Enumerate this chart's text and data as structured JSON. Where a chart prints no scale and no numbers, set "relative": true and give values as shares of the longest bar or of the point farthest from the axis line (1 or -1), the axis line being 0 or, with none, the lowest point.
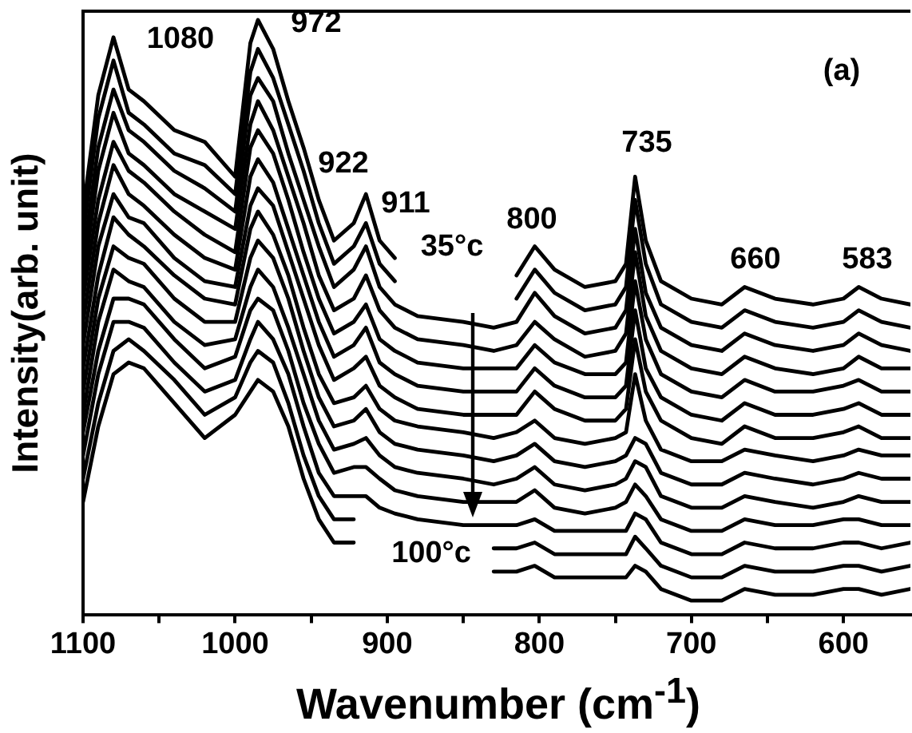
{
  "chart_data": {
    "type": "line",
    "relative": true,
    "legend": false,
    "xlabel": "Wavenumber (cm$^{-1}$)",
    "ylabel": "Intensity(arb. unit)",
    "x": [
      1100,
      1090,
      1080,
      1070,
      1060,
      1040,
      1020,
      1000,
      990,
      985,
      975,
      965,
      955,
      945,
      935,
      922,
      914,
      905,
      895,
      880,
      850,
      830,
      815,
      803,
      790,
      770,
      750,
      743,
      737,
      730,
      720,
      700,
      680,
      665,
      645,
      620,
      600,
      590,
      575,
      556
    ],
    "xlim": [
      1100,
      556
    ],
    "xticks": [
      1100,
      {
        "value": 1050,
        "label": null
      },
      1000,
      {
        "value": 950,
        "label": null
      },
      900,
      {
        "value": 850,
        "label": null
      },
      800,
      {
        "value": 750,
        "label": null
      },
      700,
      {
        "value": 650,
        "label": null
      },
      600
    ],
    "series": [
      {
        "color": "#000000",
        "values": [
          0.67,
          0.87,
          0.97,
          0.88,
          0.86,
          0.81,
          0.79,
          0.73,
          0.96,
          1.0,
          0.95,
          0.86,
          0.78,
          0.69,
          0.62,
          0.65,
          0.7,
          0.62,
          0.59,
          null,
          null,
          null,
          0.56,
          0.61,
          0.57,
          0.54,
          0.55,
          0.58,
          0.73,
          0.62,
          0.55,
          0.52,
          0.51,
          0.54,
          0.52,
          0.51,
          0.52,
          0.54,
          0.52,
          0.51
        ]
      },
      {
        "color": "#000000",
        "values": [
          0.63,
          0.83,
          0.93,
          0.84,
          0.82,
          0.77,
          0.75,
          0.7,
          0.91,
          0.95,
          0.9,
          0.82,
          0.74,
          0.65,
          0.58,
          0.61,
          0.65,
          0.58,
          0.55,
          null,
          null,
          null,
          0.52,
          0.57,
          0.53,
          0.5,
          0.51,
          0.54,
          0.69,
          0.58,
          0.51,
          0.48,
          0.47,
          0.5,
          0.48,
          0.47,
          0.48,
          0.5,
          0.48,
          0.47
        ]
      },
      {
        "color": "#000000",
        "values": [
          0.59,
          0.78,
          0.88,
          0.81,
          0.79,
          0.74,
          0.71,
          0.67,
          0.87,
          0.9,
          0.86,
          0.77,
          0.69,
          0.61,
          0.54,
          0.57,
          0.61,
          0.54,
          0.51,
          0.49,
          0.48,
          0.47,
          0.48,
          0.53,
          0.49,
          0.46,
          0.47,
          0.5,
          0.64,
          0.53,
          0.47,
          0.44,
          0.43,
          0.46,
          0.44,
          0.43,
          0.44,
          0.46,
          0.44,
          0.43
        ]
      },
      {
        "color": "#000000",
        "values": [
          0.55,
          0.74,
          0.84,
          0.77,
          0.75,
          0.7,
          0.67,
          0.64,
          0.82,
          0.86,
          0.81,
          0.73,
          0.65,
          0.56,
          0.5,
          0.52,
          0.56,
          0.5,
          0.47,
          0.45,
          0.44,
          0.43,
          0.44,
          0.48,
          0.45,
          0.42,
          0.43,
          0.46,
          0.6,
          0.49,
          0.43,
          0.4,
          0.39,
          0.42,
          0.4,
          0.39,
          0.4,
          0.42,
          0.4,
          0.4
        ]
      },
      {
        "color": "#000000",
        "values": [
          0.52,
          0.69,
          0.79,
          0.74,
          0.72,
          0.67,
          0.63,
          0.6,
          0.78,
          0.81,
          0.77,
          0.69,
          0.6,
          0.52,
          0.46,
          0.48,
          0.51,
          0.45,
          0.43,
          0.41,
          0.4,
          0.4,
          0.4,
          0.44,
          0.41,
          0.39,
          0.39,
          0.41,
          0.55,
          0.45,
          0.39,
          0.36,
          0.35,
          0.38,
          0.36,
          0.36,
          0.37,
          0.38,
          0.36,
          0.36
        ]
      },
      {
        "color": "#000000",
        "values": [
          0.48,
          0.65,
          0.75,
          0.7,
          0.68,
          0.63,
          0.59,
          0.57,
          0.73,
          0.76,
          0.72,
          0.64,
          0.56,
          0.48,
          0.42,
          0.44,
          0.47,
          0.41,
          0.39,
          0.37,
          0.36,
          0.36,
          0.36,
          0.4,
          0.37,
          0.35,
          0.35,
          0.37,
          0.5,
          0.4,
          0.35,
          0.32,
          0.31,
          0.34,
          0.32,
          0.32,
          0.33,
          0.34,
          0.32,
          0.32
        ]
      },
      {
        "color": "#000000",
        "values": [
          0.44,
          0.61,
          0.7,
          0.66,
          0.65,
          0.59,
          0.55,
          0.54,
          0.68,
          0.71,
          0.68,
          0.6,
          0.52,
          0.44,
          0.38,
          0.4,
          0.42,
          0.37,
          0.35,
          0.33,
          0.32,
          0.32,
          0.32,
          0.36,
          0.33,
          0.31,
          0.31,
          0.33,
          0.45,
          0.36,
          0.31,
          0.28,
          0.27,
          0.3,
          0.28,
          0.28,
          0.29,
          0.3,
          0.28,
          0.28
        ]
      },
      {
        "color": "#000000",
        "values": [
          0.4,
          0.56,
          0.66,
          0.63,
          0.61,
          0.56,
          0.52,
          0.51,
          0.64,
          0.67,
          0.63,
          0.56,
          0.47,
          0.39,
          0.34,
          0.35,
          0.37,
          0.33,
          0.31,
          0.3,
          0.29,
          0.28,
          0.29,
          0.31,
          0.28,
          0.27,
          0.28,
          0.29,
          0.39,
          0.31,
          0.26,
          0.24,
          0.24,
          0.26,
          0.25,
          0.24,
          0.25,
          0.26,
          0.25,
          0.25
        ]
      },
      {
        "color": "#000000",
        "values": [
          0.36,
          0.52,
          0.61,
          0.59,
          0.58,
          0.52,
          0.48,
          0.48,
          0.59,
          0.62,
          0.59,
          0.52,
          0.43,
          0.35,
          0.3,
          0.31,
          0.33,
          0.29,
          0.27,
          0.26,
          0.25,
          0.24,
          0.25,
          0.27,
          0.24,
          0.23,
          0.24,
          0.25,
          0.28,
          0.27,
          0.22,
          0.2,
          0.2,
          0.22,
          0.21,
          0.2,
          0.21,
          0.22,
          0.21,
          0.21
        ]
      },
      {
        "color": "#000000",
        "values": [
          0.32,
          0.48,
          0.57,
          0.55,
          0.54,
          0.48,
          0.44,
          0.45,
          0.54,
          0.57,
          0.54,
          0.47,
          0.39,
          0.31,
          0.26,
          0.27,
          0.28,
          0.25,
          0.23,
          0.22,
          0.21,
          0.2,
          0.21,
          0.23,
          0.2,
          0.19,
          0.2,
          0.21,
          0.24,
          0.23,
          0.18,
          0.16,
          0.16,
          0.18,
          0.17,
          0.16,
          0.17,
          0.18,
          0.17,
          0.17
        ]
      },
      {
        "color": "#000000",
        "values": [
          0.29,
          0.43,
          0.52,
          0.52,
          0.51,
          0.45,
          0.4,
          0.42,
          0.5,
          0.52,
          0.5,
          0.43,
          0.34,
          0.27,
          0.22,
          0.23,
          0.23,
          0.21,
          0.19,
          0.18,
          0.17,
          0.17,
          0.17,
          0.19,
          0.16,
          0.15,
          0.16,
          0.17,
          0.2,
          0.18,
          0.14,
          0.12,
          0.12,
          0.14,
          0.13,
          0.13,
          0.14,
          0.14,
          0.13,
          0.13
        ]
      },
      {
        "color": "#000000",
        "values": [
          0.25,
          0.39,
          0.48,
          0.48,
          0.47,
          0.41,
          0.36,
          0.38,
          0.45,
          0.48,
          0.45,
          0.39,
          0.3,
          0.22,
          0.18,
          0.18,
          0.18,
          0.16,
          0.15,
          0.14,
          0.13,
          0.13,
          0.13,
          0.14,
          0.12,
          0.12,
          0.12,
          0.12,
          0.15,
          0.14,
          0.1,
          0.08,
          0.08,
          0.1,
          0.09,
          0.09,
          0.1,
          0.1,
          0.09,
          0.1
        ]
      },
      {
        "color": "#000000",
        "values": [
          0.21,
          0.34,
          0.43,
          0.45,
          0.43,
          0.38,
          0.32,
          0.35,
          0.41,
          0.43,
          0.41,
          0.34,
          0.25,
          0.18,
          0.14,
          0.14,
          null,
          null,
          null,
          null,
          null,
          0.09,
          0.09,
          0.1,
          0.08,
          0.08,
          0.08,
          0.08,
          0.11,
          0.09,
          0.06,
          0.04,
          0.04,
          0.06,
          0.05,
          0.05,
          0.06,
          0.06,
          0.05,
          0.06
        ]
      },
      {
        "color": "#000000",
        "values": [
          0.17,
          0.3,
          0.39,
          0.41,
          0.4,
          0.34,
          0.28,
          0.32,
          0.36,
          0.38,
          0.36,
          0.3,
          0.21,
          0.14,
          0.1,
          0.1,
          null,
          null,
          null,
          null,
          null,
          0.05,
          0.05,
          0.06,
          0.04,
          0.04,
          0.04,
          0.04,
          0.06,
          0.05,
          0.02,
          0.0,
          0.0,
          0.02,
          0.01,
          0.01,
          0.02,
          0.02,
          0.01,
          0.02
        ]
      }
    ],
    "annotations": [
      "1080",
      "972",
      "922",
      "911",
      "800",
      "735",
      "660",
      "583",
      "(a)",
      "35°c",
      "100°c"
    ]
  }
}
